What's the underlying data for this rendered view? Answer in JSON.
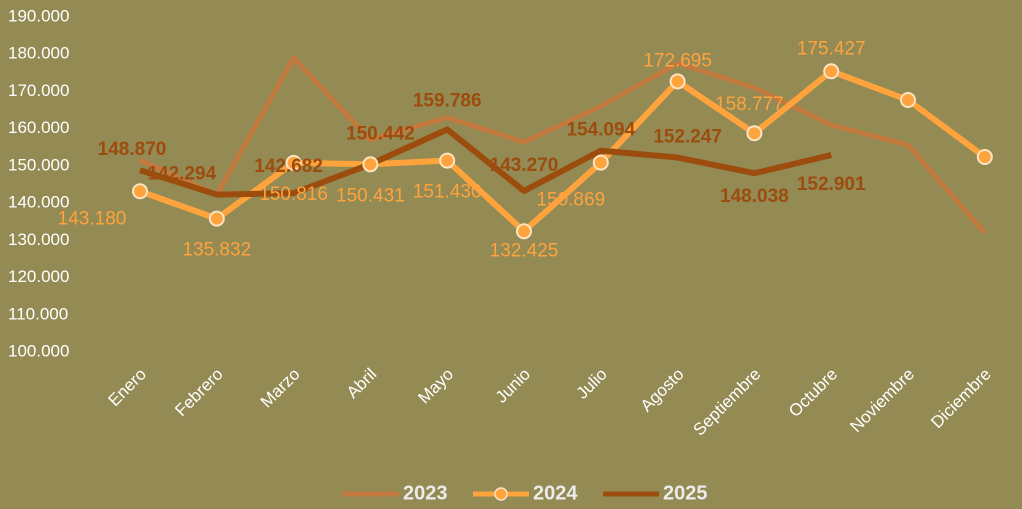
{
  "chart_data": {
    "type": "line",
    "categories": [
      "Enero",
      "Febrero",
      "Marzo",
      "Abril",
      "Mayo",
      "Junio",
      "Julio",
      "Agosto",
      "Septiembre",
      "Octubre",
      "Noviembre",
      "Diciembre"
    ],
    "series": [
      {
        "name": "2023",
        "color": "#c27a3e",
        "values": [
          151600,
          142200,
          179000,
          157000,
          163000,
          156400,
          166000,
          177600,
          171000,
          161000,
          155600,
          132000
        ]
      },
      {
        "name": "2024",
        "color": "#ffa33d",
        "marker": "circle",
        "values": [
          143180,
          135832,
          150816,
          150431,
          151430,
          132425,
          150869,
          172695,
          158777,
          175427,
          167700,
          152400
        ],
        "value_labels": [
          "143.180",
          "135.832",
          "150.816",
          "150.431",
          "151.430",
          "132.425",
          "150.869",
          "172.695",
          "158.777",
          "175.427",
          null,
          null
        ]
      },
      {
        "name": "2025",
        "color": "#9c4d0e",
        "values": [
          148870,
          142294,
          142682,
          150442,
          159786,
          143270,
          154094,
          152247,
          148038,
          152901,
          null,
          null
        ],
        "value_labels": [
          "148.870",
          "142.294",
          "142.682",
          "150.442",
          "159.786",
          "143.270",
          "154.094",
          "152.247",
          "148.038",
          "152.901",
          null,
          null
        ]
      }
    ],
    "ylim": [
      100000,
      190000
    ],
    "yticks": [
      {
        "value": 100000,
        "label": "100.000"
      },
      {
        "value": 110000,
        "label": "110.000"
      },
      {
        "value": 120000,
        "label": "120.000"
      },
      {
        "value": 130000,
        "label": "130.000"
      },
      {
        "value": 140000,
        "label": "140.000"
      },
      {
        "value": 150000,
        "label": "150.000"
      },
      {
        "value": 160000,
        "label": "160.000"
      },
      {
        "value": 170000,
        "label": "170.000"
      },
      {
        "value": 180000,
        "label": "180.000"
      },
      {
        "value": 190000,
        "label": "190.000"
      }
    ],
    "grid": false,
    "legend": "bottom"
  }
}
